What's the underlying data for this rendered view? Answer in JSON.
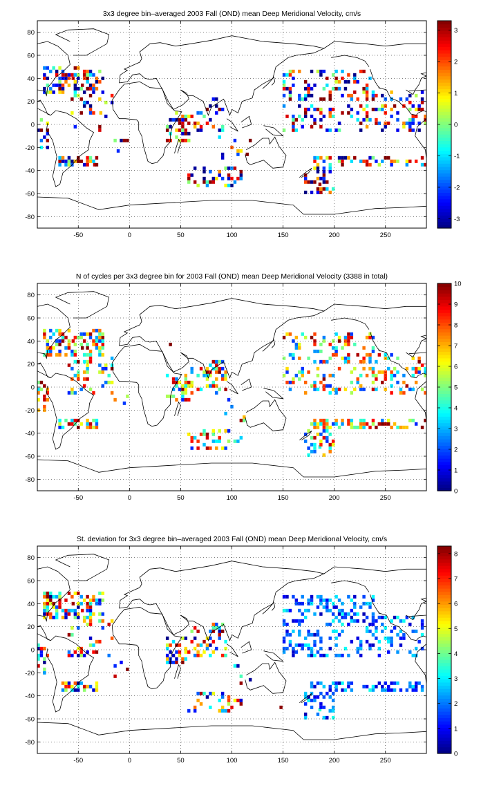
{
  "panels": [
    {
      "title": "3x3 degree bin–averaged 2003 Fall (OND) mean Deep Meridional Velocity, cm/s",
      "colorbar": {
        "min": -3.3,
        "max": 3.3,
        "ticks": [
          -3,
          -2,
          -1,
          0,
          1,
          2,
          3
        ]
      },
      "seed": 11,
      "bias": "velocity"
    },
    {
      "title": "N of cycles per 3x3 degree bin for 2003 Fall (OND) mean Deep Meridional Velocity (3388 in total)",
      "colorbar": {
        "min": 0,
        "max": 10,
        "ticks": [
          0,
          1,
          2,
          3,
          4,
          5,
          6,
          7,
          8,
          9,
          10
        ]
      },
      "seed": 23,
      "bias": "count"
    },
    {
      "title": "St. deviation for 3x3 degree bin–averaged 2003 Fall (OND) mean Deep Meridional Velocity, cm/s",
      "colorbar": {
        "min": 0,
        "max": 8.3,
        "ticks": [
          0,
          1,
          2,
          3,
          4,
          5,
          6,
          7,
          8
        ]
      },
      "seed": 37,
      "bias": "std"
    }
  ],
  "chart_data": [
    {
      "type": "heatmap",
      "title": "3x3 degree bin–averaged 2003 Fall (OND) mean Deep Meridional Velocity, cm/s",
      "xlim": [
        -90,
        290
      ],
      "ylim": [
        -90,
        90
      ],
      "xticks": [
        -50,
        0,
        50,
        100,
        150,
        200,
        250
      ],
      "yticks": [
        -80,
        -60,
        -40,
        -20,
        0,
        20,
        40,
        60,
        80
      ],
      "bin_size_deg": 3,
      "colormap": "jet",
      "colorbar_range": [
        -3.3,
        3.3
      ],
      "grid": true,
      "cells": [
        {
          "lon": -55,
          "lat": 40,
          "value": 2.8
        },
        {
          "lon": -52,
          "lat": 37,
          "value": -3.0
        },
        {
          "lon": -46,
          "lat": 34,
          "value": 3.1
        },
        {
          "lon": -40,
          "lat": 31,
          "value": -2.5
        },
        {
          "lon": -28,
          "lat": 10,
          "value": 1.2
        },
        {
          "lon": -34,
          "lat": -35,
          "value": 2.9
        },
        {
          "lon": 46,
          "lat": 4,
          "value": -3.2
        },
        {
          "lon": 52,
          "lat": -2,
          "value": 3.0
        },
        {
          "lon": 67,
          "lat": 10,
          "value": -1.8
        },
        {
          "lon": 88,
          "lat": 13,
          "value": 3.2
        },
        {
          "lon": 82,
          "lat": -47,
          "value": -3.1
        },
        {
          "lon": 97,
          "lat": -44,
          "value": 3.0
        },
        {
          "lon": 160,
          "lat": 40,
          "value": -2.4
        },
        {
          "lon": 186,
          "lat": -52,
          "value": 3.1
        },
        {
          "lon": 232,
          "lat": -32,
          "value": 2.7
        },
        {
          "lon": 271,
          "lat": 1,
          "value": -1.6
        }
      ]
    },
    {
      "type": "heatmap",
      "title": "N of cycles per 3x3 degree bin for 2003 Fall (OND) mean Deep Meridional Velocity (3388 in total)",
      "xlim": [
        -90,
        290
      ],
      "ylim": [
        -90,
        90
      ],
      "xticks": [
        -50,
        0,
        50,
        100,
        150,
        200,
        250
      ],
      "yticks": [
        -80,
        -60,
        -40,
        -20,
        0,
        20,
        40,
        60,
        80
      ],
      "bin_size_deg": 3,
      "colormap": "jet",
      "colorbar_range": [
        0,
        10
      ],
      "grid": true,
      "cells": [
        {
          "lon": -55,
          "lat": 40,
          "value": 9
        },
        {
          "lon": -46,
          "lat": 34,
          "value": 10
        },
        {
          "lon": 40,
          "lat": 37,
          "value": 10
        },
        {
          "lon": 52,
          "lat": -2,
          "value": 10
        },
        {
          "lon": 88,
          "lat": 13,
          "value": 10
        },
        {
          "lon": 82,
          "lat": -47,
          "value": 3
        },
        {
          "lon": 178,
          "lat": 43,
          "value": 10
        },
        {
          "lon": 205,
          "lat": 40,
          "value": 10
        },
        {
          "lon": 214,
          "lat": 22,
          "value": 8
        },
        {
          "lon": 232,
          "lat": -32,
          "value": 9
        },
        {
          "lon": 247,
          "lat": -32,
          "value": 10
        },
        {
          "lon": 186,
          "lat": -52,
          "value": 4
        }
      ]
    },
    {
      "type": "heatmap",
      "title": "St. deviation for 3x3 degree bin–averaged 2003 Fall (OND) mean Deep Meridional Velocity, cm/s",
      "xlim": [
        -90,
        290
      ],
      "ylim": [
        -90,
        90
      ],
      "xticks": [
        -50,
        0,
        50,
        100,
        150,
        200,
        250
      ],
      "yticks": [
        -80,
        -60,
        -40,
        -20,
        0,
        20,
        40,
        60,
        80
      ],
      "bin_size_deg": 3,
      "colormap": "jet",
      "colorbar_range": [
        0,
        8.3
      ],
      "grid": true,
      "cells": [
        {
          "lon": -55,
          "lat": 40,
          "value": 8.0
        },
        {
          "lon": -46,
          "lat": 34,
          "value": 7.5
        },
        {
          "lon": 46,
          "lat": 4,
          "value": 8.1
        },
        {
          "lon": 88,
          "lat": 13,
          "value": 7.8
        },
        {
          "lon": 148,
          "lat": -50,
          "value": 8.2
        },
        {
          "lon": 200,
          "lat": 37,
          "value": 0.8
        },
        {
          "lon": 214,
          "lat": 22,
          "value": 1.0
        },
        {
          "lon": 232,
          "lat": -32,
          "value": 0.9
        },
        {
          "lon": 247,
          "lat": -32,
          "value": 0.7
        },
        {
          "lon": 186,
          "lat": -52,
          "value": 3.5
        }
      ]
    }
  ]
}
